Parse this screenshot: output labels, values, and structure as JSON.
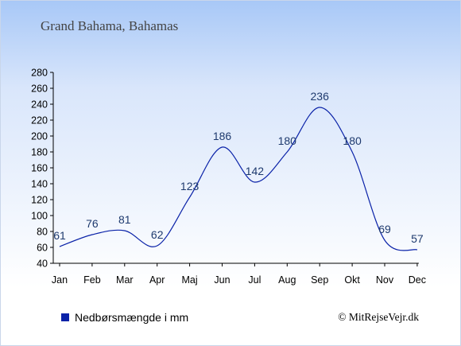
{
  "chart_data": {
    "type": "line",
    "title": "Grand Bahama, Bahamas",
    "categories": [
      "Jan",
      "Feb",
      "Mar",
      "Apr",
      "Maj",
      "Jun",
      "Jul",
      "Aug",
      "Sep",
      "Okt",
      "Nov",
      "Dec"
    ],
    "series": [
      {
        "name": "Nedbørsmængde i mm",
        "values": [
          61,
          76,
          81,
          62,
          123,
          186,
          142,
          180,
          236,
          180,
          69,
          57
        ],
        "color": "#0a22a8"
      }
    ],
    "yticks": [
      40,
      60,
      80,
      100,
      120,
      140,
      160,
      180,
      200,
      220,
      240,
      260,
      280
    ],
    "ylim": [
      40,
      280
    ],
    "grid": false,
    "legend_position": "bottom-left",
    "label_color": "#1e3a6e"
  },
  "footer": {
    "copyright": "© MitRejseVejr.dk"
  }
}
